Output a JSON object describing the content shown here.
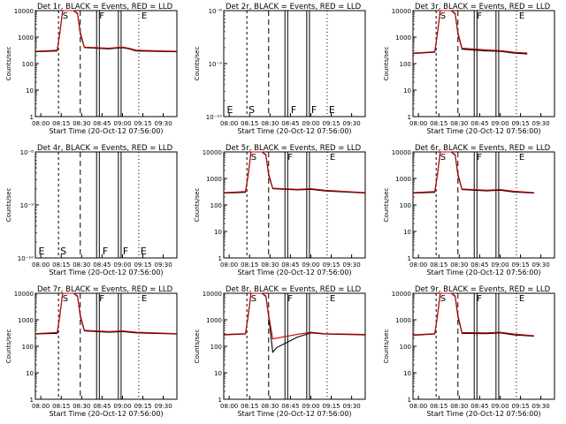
{
  "chart_data": [
    {
      "type": "line",
      "title": "Det 1r, BLACK = Events, RED = LLD",
      "xlabel": "Start Time (20-Oct-12 07:56:00)",
      "ylabel": "Counts/sec",
      "yscale": "log",
      "ylim": [
        1,
        10000
      ],
      "yticks": [
        "1",
        "10",
        "100",
        "1000",
        "10000"
      ],
      "xticks": [
        "08:00",
        "08:15",
        "08:30",
        "08:45",
        "09:00",
        "09:15",
        "09:30"
      ],
      "xrange": [
        "07:56",
        "09:40"
      ],
      "annotations": [
        "S",
        "F",
        "E"
      ],
      "series": [
        {
          "color": "#cc0000",
          "x": [
            "07:56",
            "08:12",
            "08:14",
            "08:16",
            "08:24",
            "08:27",
            "08:29",
            "08:32",
            "08:50",
            "08:55",
            "09:00",
            "09:05",
            "09:10",
            "09:40"
          ],
          "values": [
            290,
            320,
            1500,
            10000,
            10000,
            8000,
            1500,
            420,
            380,
            400,
            420,
            380,
            320,
            290
          ]
        },
        {
          "color": "#000000",
          "x": [
            "07:56",
            "08:12",
            "08:14",
            "08:16",
            "08:24",
            "08:27",
            "08:29",
            "08:32",
            "08:50",
            "08:55",
            "09:00",
            "09:05",
            "09:10",
            "09:40"
          ],
          "values": [
            280,
            300,
            1400,
            10000,
            10000,
            7500,
            1300,
            400,
            360,
            380,
            400,
            360,
            300,
            280
          ]
        }
      ]
    },
    {
      "type": "line",
      "title": "Det 2r, BLACK = Events, RED = LLD",
      "xlabel": "Start Time (20-Oct-12 07:56:00)",
      "ylabel": "Counts/sec",
      "yscale": "log",
      "ylim": [
        1e-10,
        1e-08
      ],
      "yticks": [
        "10⁻¹⁰",
        "10⁻⁹",
        "10⁻⁸"
      ],
      "xticks": [
        "08:00",
        "08:15",
        "08:30",
        "08:45",
        "09:00",
        "09:15",
        "09:30"
      ],
      "xrange": [
        "07:56",
        "09:40"
      ],
      "annotations": [
        "E",
        "S",
        "F",
        "F",
        "E"
      ],
      "series": []
    },
    {
      "type": "line",
      "title": "Det 3r, BLACK = Events, RED = LLD",
      "xlabel": "Start Time (20-Oct-12 07:56:00)",
      "ylabel": "Counts/sec",
      "yscale": "log",
      "ylim": [
        1,
        10000
      ],
      "yticks": [
        "1",
        "10",
        "100",
        "1000",
        "10000"
      ],
      "xticks": [
        "08:00",
        "08:15",
        "08:30",
        "08:45",
        "09:00",
        "09:15",
        "09:30"
      ],
      "xrange": [
        "07:56",
        "09:40"
      ],
      "annotations": [
        "S",
        "F",
        "E"
      ],
      "series": [
        {
          "color": "#cc0000",
          "x": [
            "07:56",
            "08:12",
            "08:14",
            "08:16",
            "08:24",
            "08:27",
            "08:29",
            "08:32",
            "08:50",
            "09:00",
            "09:10",
            "09:20"
          ],
          "values": [
            250,
            280,
            1500,
            10000,
            10000,
            8000,
            1500,
            380,
            330,
            310,
            270,
            250
          ]
        },
        {
          "color": "#000000",
          "x": [
            "07:56",
            "08:12",
            "08:14",
            "08:16",
            "08:24",
            "08:27",
            "08:29",
            "08:32",
            "08:50",
            "09:00",
            "09:10",
            "09:20"
          ],
          "values": [
            240,
            270,
            1400,
            10000,
            10000,
            7500,
            1300,
            350,
            300,
            290,
            250,
            230
          ]
        }
      ]
    },
    {
      "type": "line",
      "title": "Det 4r, BLACK = Events, RED = LLD",
      "xlabel": "Start Time (20-Oct-12 07:56:00)",
      "ylabel": "Counts/sec",
      "yscale": "log",
      "ylim": [
        1e-10,
        1e-08
      ],
      "yticks": [
        "10⁻¹⁰",
        "10⁻⁹",
        "10⁻⁸"
      ],
      "xticks": [
        "08:00",
        "08:15",
        "08:30",
        "08:45",
        "09:00",
        "09:15",
        "09:30"
      ],
      "xrange": [
        "07:56",
        "09:40"
      ],
      "annotations": [
        "E",
        "S",
        "F",
        "F",
        "E"
      ],
      "series": []
    },
    {
      "type": "line",
      "title": "Det 5r, BLACK = Events, RED = LLD",
      "xlabel": "Start Time (20-Oct-12 07:56:00)",
      "ylabel": "Counts/sec",
      "yscale": "log",
      "ylim": [
        1,
        10000
      ],
      "yticks": [
        "1",
        "10",
        "100",
        "1000",
        "10000"
      ],
      "xticks": [
        "08:00",
        "08:15",
        "08:30",
        "08:45",
        "09:00",
        "09:15",
        "09:30"
      ],
      "xrange": [
        "07:56",
        "09:40"
      ],
      "annotations": [
        "S",
        "F",
        "E"
      ],
      "series": [
        {
          "color": "#cc0000",
          "x": [
            "07:56",
            "08:12",
            "08:14",
            "08:16",
            "08:24",
            "08:27",
            "08:29",
            "08:32",
            "08:50",
            "09:00",
            "09:10",
            "09:40"
          ],
          "values": [
            290,
            320,
            1500,
            10000,
            10000,
            8000,
            1500,
            430,
            390,
            410,
            360,
            290
          ]
        },
        {
          "color": "#000000",
          "x": [
            "07:56",
            "08:12",
            "08:14",
            "08:16",
            "08:24",
            "08:27",
            "08:29",
            "08:32",
            "08:50",
            "09:00",
            "09:10",
            "09:40"
          ],
          "values": [
            280,
            300,
            1400,
            10000,
            10000,
            7500,
            1300,
            410,
            370,
            390,
            340,
            280
          ]
        }
      ]
    },
    {
      "type": "line",
      "title": "Det 6r, BLACK = Events, RED = LLD",
      "xlabel": "Start Time (20-Oct-12 07:56:00)",
      "ylabel": "Counts/sec",
      "yscale": "log",
      "ylim": [
        1,
        10000
      ],
      "yticks": [
        "1",
        "10",
        "100",
        "1000",
        "10000"
      ],
      "xticks": [
        "08:00",
        "08:15",
        "08:30",
        "08:45",
        "09:00",
        "09:15",
        "09:30"
      ],
      "xrange": [
        "07:56",
        "09:40"
      ],
      "annotations": [
        "S",
        "F",
        "E"
      ],
      "series": [
        {
          "color": "#cc0000",
          "x": [
            "07:56",
            "08:12",
            "08:14",
            "08:16",
            "08:24",
            "08:27",
            "08:29",
            "08:32",
            "08:50",
            "09:00",
            "09:10",
            "09:25"
          ],
          "values": [
            290,
            320,
            1500,
            10000,
            10000,
            8000,
            1500,
            400,
            360,
            380,
            330,
            290
          ]
        },
        {
          "color": "#000000",
          "x": [
            "07:56",
            "08:12",
            "08:14",
            "08:16",
            "08:24",
            "08:27",
            "08:29",
            "08:32",
            "08:50",
            "09:00",
            "09:10",
            "09:25"
          ],
          "values": [
            280,
            300,
            1400,
            10000,
            10000,
            7500,
            1300,
            380,
            340,
            360,
            310,
            280
          ]
        }
      ]
    },
    {
      "type": "line",
      "title": "Det 7r, BLACK = Events, RED = LLD",
      "xlabel": "Start Time (20-Oct-12 07:56:00)",
      "ylabel": "Counts/sec",
      "yscale": "log",
      "ylim": [
        1,
        10000
      ],
      "yticks": [
        "1",
        "10",
        "100",
        "1000",
        "10000"
      ],
      "xticks": [
        "08:00",
        "08:15",
        "08:30",
        "08:45",
        "09:00",
        "09:15",
        "09:30"
      ],
      "xrange": [
        "07:56",
        "09:40"
      ],
      "annotations": [
        "S",
        "F",
        "E"
      ],
      "series": [
        {
          "color": "#cc0000",
          "x": [
            "07:56",
            "08:12",
            "08:14",
            "08:16",
            "08:24",
            "08:27",
            "08:29",
            "08:32",
            "08:50",
            "09:00",
            "09:10",
            "09:40"
          ],
          "values": [
            300,
            330,
            1500,
            10000,
            10000,
            8000,
            1500,
            400,
            360,
            380,
            340,
            300
          ]
        },
        {
          "color": "#000000",
          "x": [
            "07:56",
            "08:12",
            "08:14",
            "08:16",
            "08:24",
            "08:27",
            "08:29",
            "08:32",
            "08:50",
            "09:00",
            "09:10",
            "09:40"
          ],
          "values": [
            290,
            310,
            1400,
            10000,
            10000,
            7500,
            1300,
            380,
            340,
            360,
            320,
            290
          ]
        }
      ]
    },
    {
      "type": "line",
      "title": "Det 8r, BLACK = Events, RED = LLD",
      "xlabel": "Start Time (20-Oct-12 07:56:00)",
      "ylabel": "Counts/sec",
      "yscale": "log",
      "ylim": [
        1,
        10000
      ],
      "yticks": [
        "1",
        "10",
        "100",
        "1000",
        "10000"
      ],
      "xticks": [
        "08:00",
        "08:15",
        "08:30",
        "08:45",
        "09:00",
        "09:15",
        "09:30"
      ],
      "xrange": [
        "07:56",
        "09:40"
      ],
      "annotations": [
        "S",
        "F",
        "E"
      ],
      "series": [
        {
          "color": "#cc0000",
          "x": [
            "07:56",
            "08:12",
            "08:14",
            "08:16",
            "08:24",
            "08:27",
            "08:29",
            "08:32",
            "08:50",
            "09:00",
            "09:10",
            "09:40"
          ],
          "values": [
            280,
            300,
            1500,
            10000,
            10000,
            8000,
            1500,
            190,
            280,
            340,
            300,
            280
          ]
        },
        {
          "color": "#000000",
          "x": [
            "07:56",
            "08:12",
            "08:14",
            "08:16",
            "08:24",
            "08:27",
            "08:29",
            "08:32",
            "08:35",
            "08:50",
            "09:00",
            "09:10",
            "09:40"
          ],
          "values": [
            270,
            290,
            1400,
            10000,
            10000,
            7500,
            1300,
            60,
            90,
            220,
            320,
            290,
            270
          ]
        }
      ]
    },
    {
      "type": "line",
      "title": "Det 9r, BLACK = Events, RED = LLD",
      "xlabel": "Start Time (20-Oct-12 07:56:00)",
      "ylabel": "Counts/sec",
      "yscale": "log",
      "ylim": [
        1,
        10000
      ],
      "yticks": [
        "1",
        "10",
        "100",
        "1000",
        "10000"
      ],
      "xticks": [
        "08:00",
        "08:15",
        "08:30",
        "08:45",
        "09:00",
        "09:15",
        "09:30"
      ],
      "xrange": [
        "07:56",
        "09:40"
      ],
      "annotations": [
        "S",
        "F",
        "E"
      ],
      "series": [
        {
          "color": "#cc0000",
          "x": [
            "07:56",
            "08:12",
            "08:14",
            "08:16",
            "08:24",
            "08:27",
            "08:29",
            "08:32",
            "08:50",
            "09:00",
            "09:10",
            "09:25"
          ],
          "values": [
            270,
            300,
            1500,
            10000,
            10000,
            8000,
            1500,
            330,
            320,
            340,
            290,
            250
          ]
        },
        {
          "color": "#000000",
          "x": [
            "07:56",
            "08:12",
            "08:14",
            "08:16",
            "08:24",
            "08:27",
            "08:29",
            "08:32",
            "08:50",
            "09:00",
            "09:10",
            "09:25"
          ],
          "values": [
            260,
            290,
            1400,
            10000,
            10000,
            7500,
            1300,
            310,
            300,
            320,
            270,
            240
          ]
        }
      ]
    }
  ]
}
